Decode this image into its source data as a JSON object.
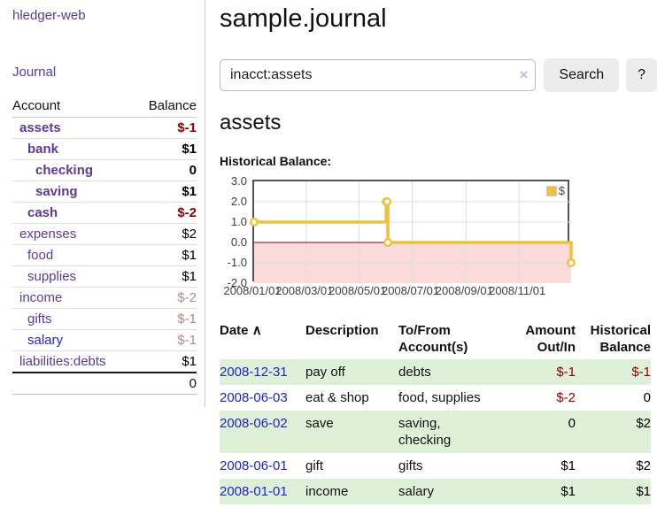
{
  "sidebar": {
    "brand": "hledger-web",
    "nav": {
      "journal": "Journal"
    },
    "table": {
      "header": {
        "account": "Account",
        "balance": "Balance"
      },
      "accounts": [
        {
          "name": "assets",
          "balance": "$-1",
          "balance_color": "#8b0000"
        },
        {
          "name": "bank",
          "balance": "$1",
          "balance_color": "#000000"
        },
        {
          "name": "checking",
          "balance": "0",
          "balance_color": "#000000"
        },
        {
          "name": "saving",
          "balance": "$1",
          "balance_color": "#000000"
        },
        {
          "name": "cash",
          "balance": "$-2",
          "balance_color": "#8b0000"
        },
        {
          "name": "expenses",
          "balance": "$2",
          "balance_color": "#000000"
        },
        {
          "name": "food",
          "balance": "$1",
          "balance_color": "#000000"
        },
        {
          "name": "supplies",
          "balance": "$1",
          "balance_color": "#000000"
        },
        {
          "name": "income",
          "balance": "$-2",
          "balance_color": "#b98585"
        },
        {
          "name": "gifts",
          "balance": "$-1",
          "balance_color": "#b98585"
        },
        {
          "name": "salary",
          "balance": "$-1",
          "balance_color": "#b98585",
          "name_color": "#2222dd"
        },
        {
          "name": "liabilities:debts",
          "balance": "$1",
          "balance_color": "#000000"
        }
      ],
      "total": "0"
    }
  },
  "main": {
    "title": "sample.journal",
    "search": {
      "value": "inacct:assets",
      "clear_icon": "×",
      "search_button": "Search",
      "help_button": "?"
    },
    "heading": "assets",
    "chart_title": "Historical Balance:"
  },
  "chart_data": {
    "type": "line",
    "step": true,
    "title": "Historical Balance:",
    "series": [
      {
        "name": "$",
        "color": "#edc240",
        "points": [
          [
            "2008-01-01",
            1
          ],
          [
            "2008-06-01",
            2
          ],
          [
            "2008-06-02",
            2
          ],
          [
            "2008-06-03",
            0
          ],
          [
            "2008-12-31",
            -1
          ]
        ]
      }
    ],
    "xlim": [
      "2008-01-01",
      "2008-12-31"
    ],
    "ylim": [
      -2,
      3
    ],
    "y_ticks": [
      3,
      2,
      1,
      0,
      -1,
      -2
    ],
    "x_ticks": [
      "2008/01/01",
      "2008/03/01",
      "2008/05/01",
      "2008/07/01",
      "2008/09/01",
      "2008/11/01"
    ],
    "grid": true,
    "grid_color": "#dddddd",
    "negative_region_color": "#fbdada",
    "zero_line_color": "#8b0000",
    "legend_position": "top-right"
  },
  "register": {
    "columns": {
      "date": "Date",
      "description": "Description",
      "tofrom": "To/From Account(s)",
      "amount": "Amount Out/In",
      "balance": "Historical Balance"
    },
    "sort_icon": "∧",
    "rows": [
      {
        "date": "2008-12-31",
        "description": "pay off",
        "tofrom": "debts",
        "amount": "$-1",
        "amount_color": "#8b0000",
        "balance": "$-1",
        "balance_color": "#8b0000"
      },
      {
        "date": "2008-06-03",
        "description": "eat & shop",
        "tofrom": "food, supplies",
        "amount": "$-2",
        "amount_color": "#8b0000",
        "balance": "0",
        "balance_color": "#000000"
      },
      {
        "date": "2008-06-02",
        "description": "save",
        "tofrom": "saving, checking",
        "amount": "0",
        "amount_color": "#000000",
        "balance": "$2",
        "balance_color": "#000000"
      },
      {
        "date": "2008-06-01",
        "description": "gift",
        "tofrom": "gifts",
        "amount": "$1",
        "amount_color": "#000000",
        "balance": "$2",
        "balance_color": "#000000"
      },
      {
        "date": "2008-01-01",
        "description": "income",
        "tofrom": "salary",
        "amount": "$1",
        "amount_color": "#000000",
        "balance": "$1",
        "balance_color": "#000000"
      }
    ]
  }
}
